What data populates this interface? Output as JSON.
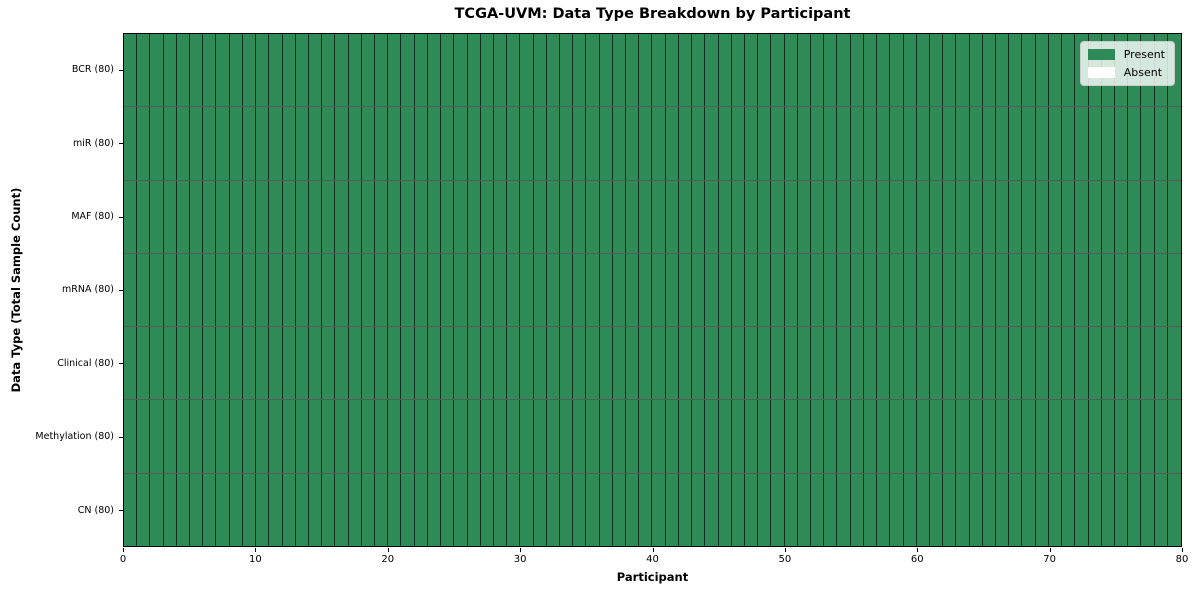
{
  "figure": {
    "background": "#ffffff"
  },
  "chart_data": {
    "type": "heatmap",
    "title": "TCGA-UVM: Data Type Breakdown by Participant",
    "xlabel": "Participant",
    "ylabel": "Data Type (Total Sample Count)",
    "xlim": [
      0,
      80
    ],
    "x_ticks": [
      0,
      10,
      20,
      30,
      40,
      50,
      60,
      70,
      80
    ],
    "participants": 80,
    "grid": true,
    "legend_position": "upper right",
    "rows": [
      {
        "label": "BCR (80)",
        "data_type": "BCR",
        "total_sample_count": 80,
        "present_count": 80,
        "absent_count": 0
      },
      {
        "label": "miR (80)",
        "data_type": "miR",
        "total_sample_count": 80,
        "present_count": 80,
        "absent_count": 0
      },
      {
        "label": "MAF (80)",
        "data_type": "MAF",
        "total_sample_count": 80,
        "present_count": 80,
        "absent_count": 0
      },
      {
        "label": "mRNA (80)",
        "data_type": "mRNA",
        "total_sample_count": 80,
        "present_count": 80,
        "absent_count": 0
      },
      {
        "label": "Clinical (80)",
        "data_type": "Clinical",
        "total_sample_count": 80,
        "present_count": 80,
        "absent_count": 0
      },
      {
        "label": "Methylation (80)",
        "data_type": "Methylation",
        "total_sample_count": 80,
        "present_count": 80,
        "absent_count": 0
      },
      {
        "label": "CN (80)",
        "data_type": "CN",
        "total_sample_count": 80,
        "present_count": 80,
        "absent_count": 0
      }
    ],
    "legend": [
      {
        "label": "Present",
        "color": "#2e8b57"
      },
      {
        "label": "Absent",
        "color": "#ffffff"
      }
    ],
    "colors": {
      "present": "#2e8b57",
      "absent": "#ffffff",
      "cell_edge": "rgba(0,0,0,0.65)",
      "axis": "#000000"
    }
  }
}
